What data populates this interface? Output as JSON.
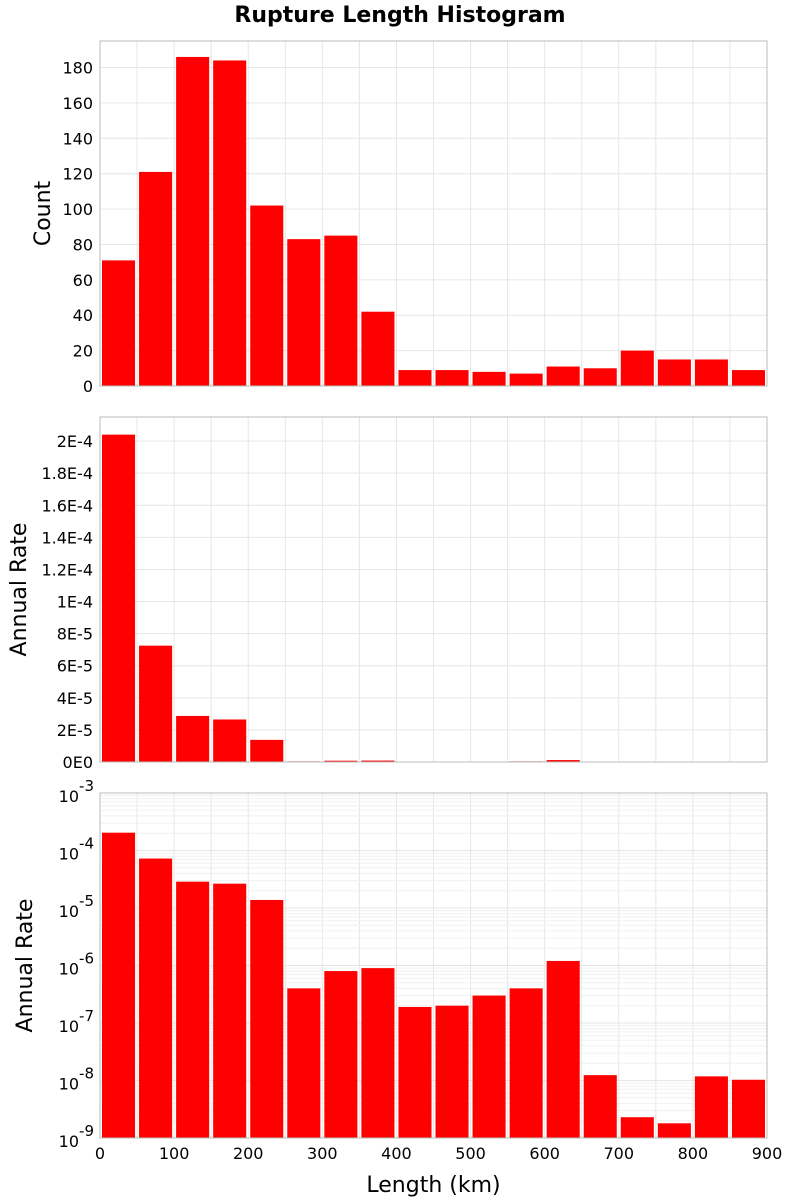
{
  "title": "Rupture Length Histogram",
  "colors": {
    "bar": "#ff0000",
    "grid": "#e6e6e6",
    "frame": "#bbbbbb"
  },
  "chart_data": [
    {
      "type": "bar",
      "panel": "top",
      "xlabel": "",
      "ylabel": "Count",
      "xlim": [
        0,
        900
      ],
      "ylim": [
        0,
        195
      ],
      "yticks": [
        0,
        20,
        40,
        60,
        80,
        100,
        120,
        140,
        160,
        180
      ],
      "ytick_labels": [
        "0",
        "20",
        "40",
        "60",
        "80",
        "100",
        "120",
        "140",
        "160",
        "180"
      ],
      "bin_width": 50,
      "x": [
        25,
        75,
        125,
        175,
        225,
        275,
        325,
        375,
        425,
        475,
        525,
        575,
        625,
        675,
        725,
        775,
        825,
        875
      ],
      "values": [
        71,
        121,
        186,
        184,
        102,
        83,
        85,
        42,
        9,
        9,
        8,
        7,
        11,
        10,
        20,
        15,
        15,
        9
      ],
      "grid": true
    },
    {
      "type": "bar",
      "panel": "middle",
      "xlabel": "",
      "ylabel": "Annual Rate",
      "xlim": [
        0,
        900
      ],
      "ylim": [
        0,
        0.000215
      ],
      "yticks": [
        0,
        2e-05,
        4e-05,
        6e-05,
        8e-05,
        0.0001,
        0.00012,
        0.00014,
        0.00016,
        0.00018,
        0.0002
      ],
      "ytick_labels": [
        "0E0",
        "2E-5",
        "4E-5",
        "6E-5",
        "8E-5",
        "1E-4",
        "1.2E-4",
        "1.4E-4",
        "1.6E-4",
        "1.8E-4",
        "2E-4"
      ],
      "bin_width": 50,
      "x": [
        25,
        75,
        125,
        175,
        225,
        275,
        325,
        375,
        425,
        475,
        525,
        575,
        625,
        675,
        725,
        775,
        825,
        875
      ],
      "values": [
        0.000204,
        7.25e-05,
        2.87e-05,
        2.65e-05,
        1.38e-05,
        4e-07,
        8e-07,
        9e-07,
        1.9e-07,
        2e-07,
        3e-07,
        4e-07,
        1.2e-06,
        1.24e-08,
        2.3e-09,
        1.8e-09,
        1.18e-08,
        1.03e-08
      ],
      "grid": true
    },
    {
      "type": "bar",
      "panel": "bottom",
      "xlabel": "Length (km)",
      "ylabel": "Annual Rate",
      "yscale": "log",
      "xlim": [
        0,
        900
      ],
      "ylim": [
        1e-09,
        0.001
      ],
      "xticks": [
        0,
        100,
        200,
        300,
        400,
        500,
        600,
        700,
        800,
        900
      ],
      "xtick_labels": [
        "0",
        "100",
        "200",
        "300",
        "400",
        "500",
        "600",
        "700",
        "800",
        "900"
      ],
      "ytick_exponents": [
        "-9",
        "-8",
        "-7",
        "-6",
        "-5",
        "-4",
        "-3"
      ],
      "ytick_base": "10",
      "bin_width": 50,
      "x": [
        25,
        75,
        125,
        175,
        225,
        275,
        325,
        375,
        425,
        475,
        525,
        575,
        625,
        675,
        725,
        775,
        825,
        875
      ],
      "values": [
        0.000204,
        7.25e-05,
        2.87e-05,
        2.65e-05,
        1.38e-05,
        4e-07,
        8e-07,
        9e-07,
        1.9e-07,
        2e-07,
        3e-07,
        4e-07,
        1.2e-06,
        1.24e-08,
        2.3e-09,
        1.8e-09,
        1.18e-08,
        1.03e-08
      ],
      "grid": true
    }
  ]
}
